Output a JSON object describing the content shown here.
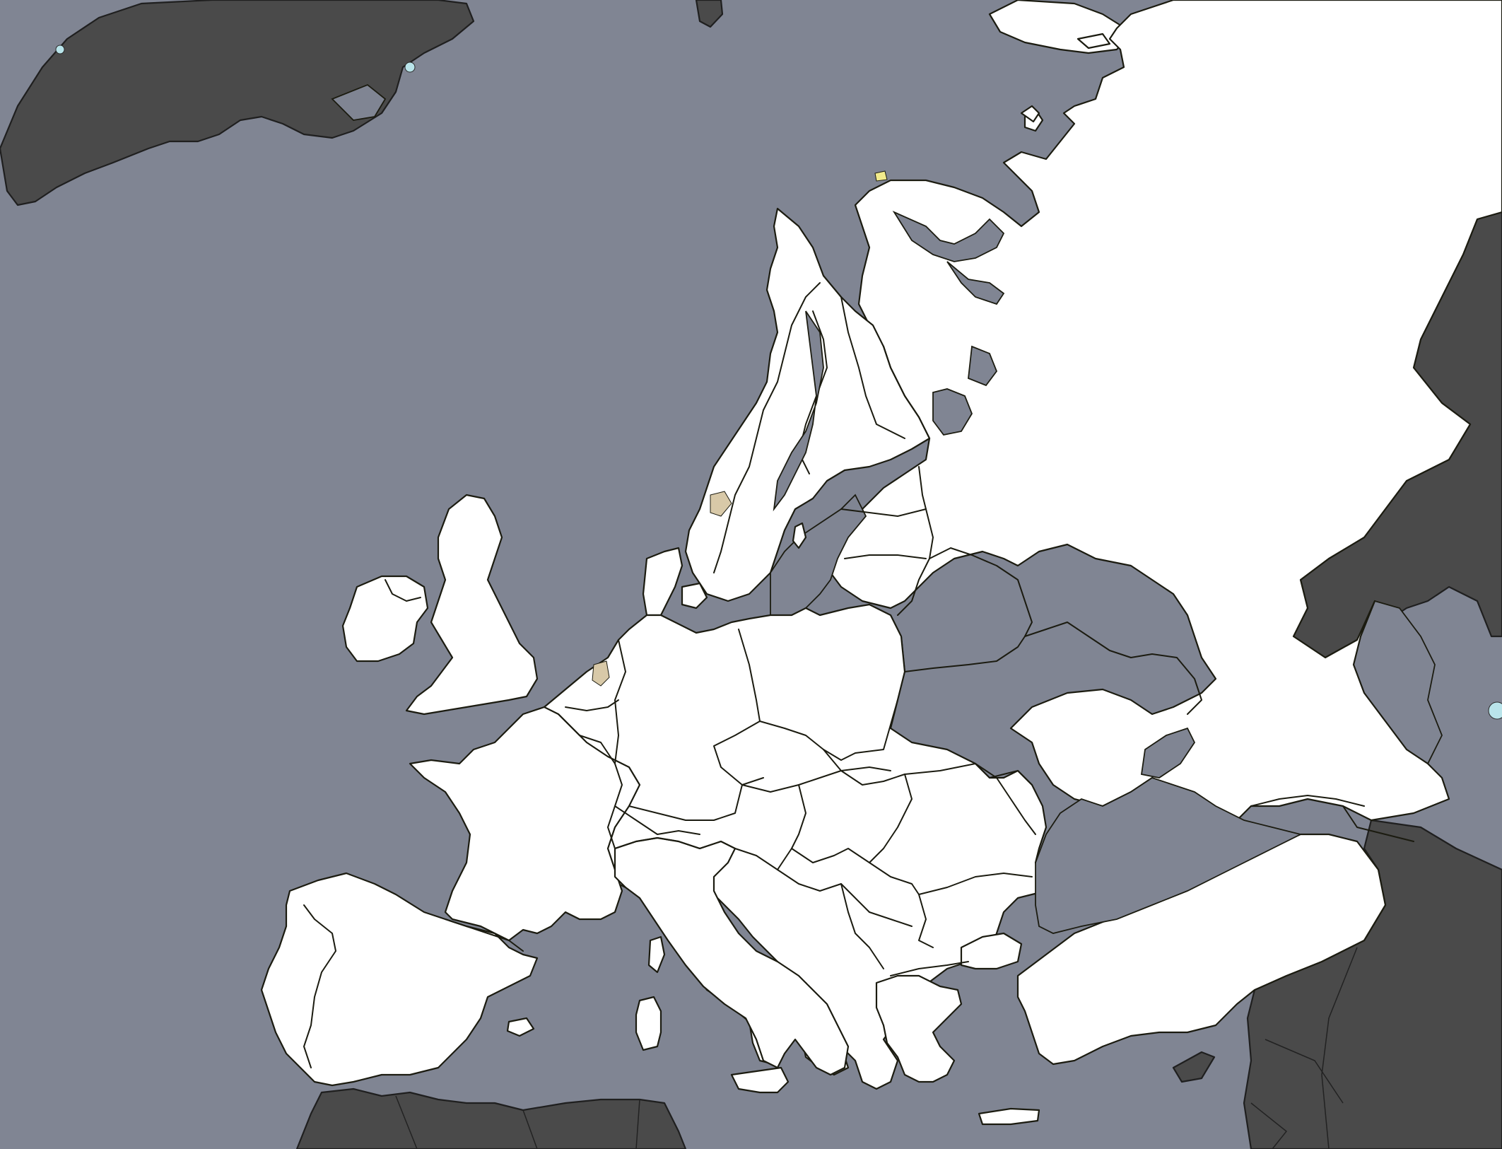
{
  "map": {
    "type": "blank-political-map",
    "colors": {
      "sea": "#808593",
      "focus_land": "#ffffff",
      "outside_land": "#4a4a4a",
      "border": "#1b1b10",
      "small_lake": "#b9e4ea",
      "highlight_tan": "#d8c9a8",
      "highlight_yellow": "#f2eb8c"
    },
    "labels": []
  }
}
